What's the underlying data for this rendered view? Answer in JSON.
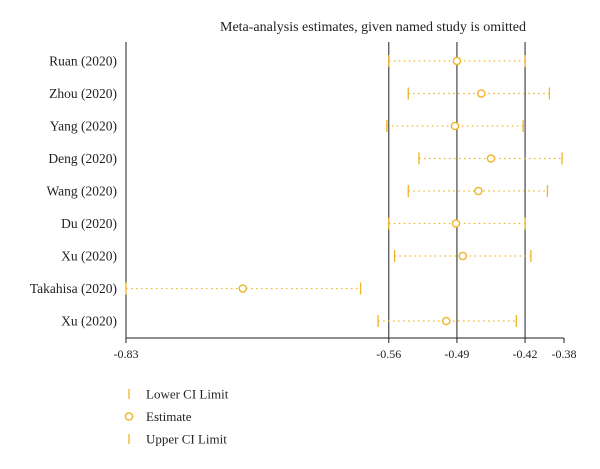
{
  "chart_data": {
    "type": "forest",
    "title": "Meta-analysis estimates, given named study is omitted",
    "xlim": [
      -0.83,
      -0.38
    ],
    "x_ticks": [
      -0.83,
      -0.56,
      -0.49,
      -0.42,
      -0.38
    ],
    "x_tick_labels": [
      "-0.83",
      "-0.56",
      "-0.49",
      "-0.42",
      "-0.38"
    ],
    "reference_lines": [
      -0.56,
      -0.49,
      -0.42
    ],
    "studies": [
      {
        "label": "Ruan (2020)",
        "lower": -0.56,
        "estimate": -0.49,
        "upper": -0.42
      },
      {
        "label": "Zhou (2020)",
        "lower": -0.54,
        "estimate": -0.465,
        "upper": -0.395
      },
      {
        "label": "Yang (2020)",
        "lower": -0.562,
        "estimate": -0.492,
        "upper": -0.422
      },
      {
        "label": "Deng (2020)",
        "lower": -0.529,
        "estimate": -0.455,
        "upper": -0.382
      },
      {
        "label": "Wang (2020)",
        "lower": -0.54,
        "estimate": -0.468,
        "upper": -0.397
      },
      {
        "label": "Du (2020)",
        "lower": -0.56,
        "estimate": -0.491,
        "upper": -0.42
      },
      {
        "label": "Xu (2020)",
        "lower": -0.554,
        "estimate": -0.484,
        "upper": -0.414
      },
      {
        "label": "Takahisa (2020)",
        "lower": -0.83,
        "estimate": -0.71,
        "upper": -0.589
      },
      {
        "label": "Xu (2020)",
        "lower": -0.571,
        "estimate": -0.501,
        "upper": -0.429
      }
    ],
    "legend": [
      {
        "key": "lower",
        "label": "Lower CI Limit"
      },
      {
        "key": "estimate",
        "label": "Estimate"
      },
      {
        "key": "upper",
        "label": "Upper CI Limit"
      }
    ],
    "legend_position": "bottom-left",
    "colors": {
      "marker": "#f0b323",
      "axis": "#222222",
      "reference_line": "#222222"
    }
  }
}
